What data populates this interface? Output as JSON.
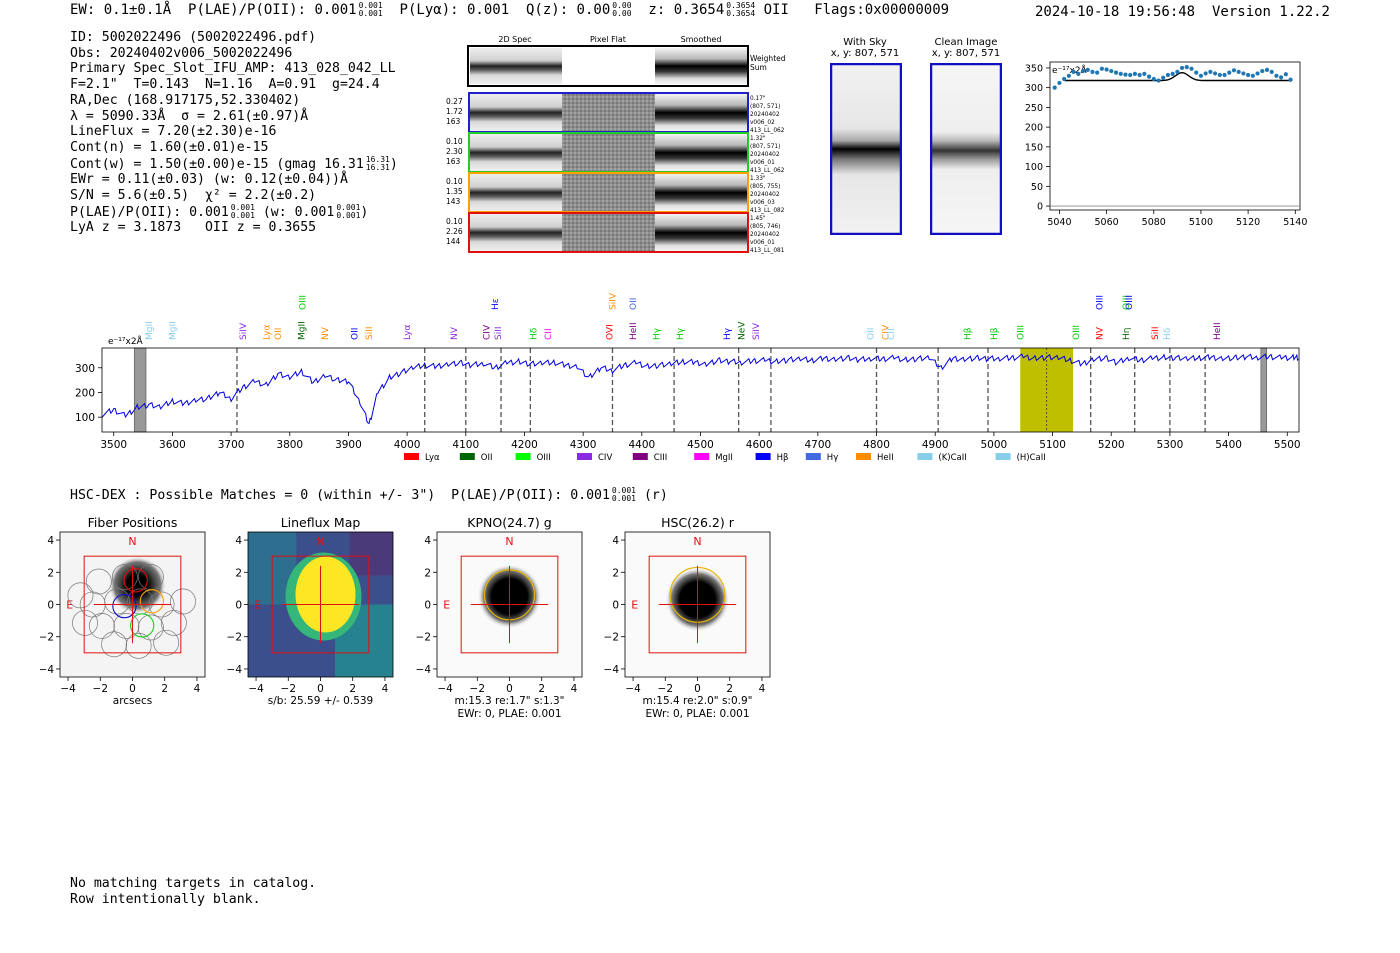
{
  "header": {
    "ew": "EW: 0.1±0.1Å",
    "plae_label": "P(LAE)/P(OII): 0.001",
    "plae_hi": "0.001",
    "plae_lo": "0.001",
    "plya": "P(Lyα): 0.001",
    "qz_label": "Q(z): 0.00",
    "qz_hi": "0.00",
    "qz_lo": "0.00",
    "z_label": "z: 0.3654",
    "z_hi": "0.3654",
    "z_lo": "0.3654",
    "z_line": "OII",
    "flags": "Flags:0x00000009",
    "datetime": "2024-10-18 19:56:48",
    "version": "Version 1.22.2"
  },
  "info": {
    "id": "ID: 5002022496 (5002022496.pdf)",
    "obs": "Obs: 20240402v006_5002022496",
    "primary": "Primary Spec_Slot_IFU_AMP: 413_028_042_LL",
    "fit": "F=2.1\"  T=0.143  N=1.16  A=0.91  g=24.4",
    "radec": "RA,Dec (168.917175,52.330402)",
    "lambda": "λ = 5090.33Å  σ = 2.61(±0.97)Å",
    "lineflux": "LineFlux = 7.20(±2.30)e-16",
    "contn": "Cont(n) = 1.60(±0.01)e-15",
    "contw": "Cont(w) = 1.50(±0.00)e-15 (gmag 16.31",
    "gmag_hi": "16.31",
    "gmag_lo": "16.31",
    "ewr": "EWr = 0.11(±0.03) (w: 0.12(±0.04))Å",
    "sn": "S/N = 5.6(±0.5)  χ² = 2.2(±0.2)",
    "plae": "P(LAE)/P(OII): 0.001",
    "plae_hi": "0.001",
    "plae_lo": "0.001",
    "plae_w": "(w: 0.001",
    "plae_w_hi": "0.001",
    "plae_w_lo": "0.001",
    "lya": "LyA z = 3.1873   OII z = 0.3655"
  },
  "cutouts": {
    "col_headers": [
      "2D Spec",
      "Pixel Flat",
      "Smoothed"
    ],
    "weighted_label": [
      "Weighted",
      "Sum"
    ],
    "rows": [
      {
        "left": [
          "0.27",
          "1.72",
          "163"
        ],
        "right": [
          "0.17\"",
          "(807, 571)",
          "20240402",
          "v006_02",
          "413_LL_062"
        ],
        "color": "#1f1fd0"
      },
      {
        "left": [
          "0.10",
          "2.30",
          "163"
        ],
        "right": [
          "1.32\"",
          "(807, 571)",
          "20240402",
          "v006_01",
          "413_LL_062"
        ],
        "color": "#22cc22"
      },
      {
        "left": [
          "0.10",
          "1.35",
          "143"
        ],
        "right": [
          "1.33\"",
          "(805, 755)",
          "20240402",
          "v006_03",
          "413_LL_082"
        ],
        "color": "#ff9f00"
      },
      {
        "left": [
          "0.10",
          "2.26",
          "144"
        ],
        "right": [
          "1.45\"",
          "(805, 746)",
          "20240402",
          "v006_01",
          "413_LL_081"
        ],
        "color": "#e01010"
      }
    ]
  },
  "sky_panels": {
    "with_sky": "With Sky",
    "clean": "Clean Image",
    "coord": "x, y: 807, 571"
  },
  "zoom_chart": {
    "type": "scatter",
    "unit_label": "e⁻¹⁷x2Å",
    "xlim": [
      5036,
      5142
    ],
    "ylim": [
      -10,
      365
    ],
    "xticks": [
      5040,
      5060,
      5080,
      5100,
      5120,
      5140
    ],
    "yticks": [
      0,
      50,
      100,
      150,
      200,
      250,
      300,
      350
    ],
    "x": [
      5038,
      5040,
      5042,
      5044,
      5046,
      5048,
      5050,
      5052,
      5054,
      5056,
      5058,
      5060,
      5062,
      5064,
      5066,
      5068,
      5070,
      5072,
      5074,
      5076,
      5078,
      5080,
      5082,
      5084,
      5086,
      5088,
      5090,
      5092,
      5094,
      5096,
      5098,
      5100,
      5102,
      5104,
      5106,
      5108,
      5110,
      5112,
      5114,
      5116,
      5118,
      5120,
      5122,
      5124,
      5126,
      5128,
      5130,
      5132,
      5134,
      5136,
      5138
    ],
    "y": [
      300,
      312,
      322,
      330,
      340,
      335,
      342,
      345,
      340,
      338,
      348,
      346,
      342,
      338,
      335,
      333,
      332,
      335,
      332,
      335,
      328,
      322,
      318,
      325,
      332,
      335,
      340,
      350,
      352,
      348,
      338,
      330,
      336,
      340,
      336,
      332,
      332,
      338,
      344,
      340,
      336,
      332,
      330,
      336,
      342,
      345,
      340,
      330,
      326,
      334,
      320
    ],
    "fit_line": {
      "baseline": 318,
      "amplitude": 20,
      "center": 5092,
      "sigma": 2.8
    }
  },
  "spectrum": {
    "type": "line",
    "unit_label": "e⁻¹⁷x2Å",
    "xlim": [
      3480,
      5520
    ],
    "ylim": [
      40,
      380
    ],
    "xticks": [
      3500,
      3600,
      3700,
      3800,
      3900,
      4000,
      4100,
      4200,
      4300,
      4400,
      4500,
      4600,
      4700,
      4800,
      4900,
      5000,
      5100,
      5200,
      5300,
      5400,
      5500
    ],
    "yticks": [
      100,
      200,
      300
    ],
    "dashed_lines": [
      3710,
      4030,
      4100,
      4160,
      4210,
      4350,
      4455,
      4565,
      4620,
      4800,
      4905,
      4990,
      5165,
      5240,
      5300,
      5360
    ],
    "highlight_range": [
      5045,
      5135
    ],
    "center_line": 5090,
    "masked_ranges": [
      [
        3535,
        3555
      ],
      [
        5455,
        5465
      ]
    ],
    "legend": [
      {
        "label": "Lyα",
        "color": "#ff0000"
      },
      {
        "label": "OII",
        "color": "#006400"
      },
      {
        "label": "OIII",
        "color": "#00ff00"
      },
      {
        "label": "CIV",
        "color": "#8a2be2"
      },
      {
        "label": "CIII",
        "color": "#800080"
      },
      {
        "label": "MgII",
        "color": "#ff00ff"
      },
      {
        "label": "Hβ",
        "color": "#0000ff"
      },
      {
        "label": "Hγ",
        "color": "#4169e1"
      },
      {
        "label": "HeII",
        "color": "#ff8c00"
      },
      {
        "label": "(K)CaII",
        "color": "#87ceeb"
      },
      {
        "label": "(H)CaII",
        "color": "#87ceeb"
      }
    ],
    "line_labels": [
      {
        "text": "MgII",
        "x": 3560,
        "color": "#87ceeb",
        "row": 1
      },
      {
        "text": "MgII",
        "x": 3600,
        "color": "#87ceeb",
        "row": 1
      },
      {
        "text": "SiIV",
        "x": 3720,
        "color": "#8a2be2",
        "row": 1
      },
      {
        "text": "Lyα",
        "x": 3760,
        "color": "#ff8c00",
        "row": 1
      },
      {
        "text": "OII",
        "x": 3780,
        "color": "#ff8c00",
        "row": 1
      },
      {
        "text": "MgII",
        "x": 3820,
        "color": "#006400",
        "row": 1
      },
      {
        "text": "OIII",
        "x": 3822,
        "color": "#00cc00",
        "row": 0
      },
      {
        "text": "NV",
        "x": 3860,
        "color": "#ff8c00",
        "row": 1
      },
      {
        "text": "OII",
        "x": 3910,
        "color": "#0000ff",
        "row": 1
      },
      {
        "text": "SiII",
        "x": 3935,
        "color": "#ff8c00",
        "row": 1
      },
      {
        "text": "Lyα",
        "x": 4000,
        "color": "#8a2be2",
        "row": 1
      },
      {
        "text": "NV",
        "x": 4080,
        "color": "#8a2be2",
        "row": 1
      },
      {
        "text": "CIV",
        "x": 4135,
        "color": "#800080",
        "row": 1
      },
      {
        "text": "SiII",
        "x": 4155,
        "color": "#8a2be2",
        "row": 1
      },
      {
        "text": "Hε",
        "x": 4150,
        "color": "#0000ff",
        "row": 0
      },
      {
        "text": "Hδ",
        "x": 4215,
        "color": "#00cc00",
        "row": 1
      },
      {
        "text": "CII",
        "x": 4240,
        "color": "#ff00ff",
        "row": 1
      },
      {
        "text": "SiIV",
        "x": 4350,
        "color": "#ff8c00",
        "row": 0
      },
      {
        "text": "OVI",
        "x": 4345,
        "color": "#ff0000",
        "row": 1
      },
      {
        "text": "OII",
        "x": 4385,
        "color": "#4169e1",
        "row": 0
      },
      {
        "text": "HeII",
        "x": 4385,
        "color": "#800080",
        "row": 1
      },
      {
        "text": "Hγ",
        "x": 4425,
        "color": "#00cc00",
        "row": 1
      },
      {
        "text": "Hγ",
        "x": 4465,
        "color": "#00cc00",
        "row": 1
      },
      {
        "text": "Hγ",
        "x": 4545,
        "color": "#0000ff",
        "row": 1
      },
      {
        "text": "NeV",
        "x": 4570,
        "color": "#006400",
        "row": 1
      },
      {
        "text": "SiIV",
        "x": 4595,
        "color": "#8a2be2",
        "row": 1
      },
      {
        "text": "OII",
        "x": 4790,
        "color": "#87ceeb",
        "row": 1
      },
      {
        "text": "CIV",
        "x": 4815,
        "color": "#ff8c00",
        "row": 1
      },
      {
        "text": "CII",
        "x": 4825,
        "color": "#87ceeb",
        "row": 1
      },
      {
        "text": "Hβ",
        "x": 4955,
        "color": "#00cc00",
        "row": 1
      },
      {
        "text": "Hβ",
        "x": 5000,
        "color": "#00cc00",
        "row": 1
      },
      {
        "text": "OIII",
        "x": 5045,
        "color": "#00cc00",
        "row": 1
      },
      {
        "text": "OIII",
        "x": 5140,
        "color": "#00cc00",
        "row": 1
      },
      {
        "text": "OIII",
        "x": 5180,
        "color": "#0000ff",
        "row": 0
      },
      {
        "text": "OIII",
        "x": 5225,
        "color": "#00cc00",
        "row": 0
      },
      {
        "text": "OIII",
        "x": 5230,
        "color": "#0000ff",
        "row": 0
      },
      {
        "text": "NV",
        "x": 5180,
        "color": "#ff0000",
        "row": 1
      },
      {
        "text": "Hη",
        "x": 5225,
        "color": "#006400",
        "row": 1
      },
      {
        "text": "SiII",
        "x": 5275,
        "color": "#ff0000",
        "row": 1
      },
      {
        "text": "Hδ",
        "x": 5295,
        "color": "#87ceeb",
        "row": 1
      },
      {
        "text": "HeII",
        "x": 5380,
        "color": "#800080",
        "row": 1
      }
    ],
    "x": [
      3480,
      3500,
      3520,
      3540,
      3560,
      3580,
      3600,
      3620,
      3640,
      3660,
      3680,
      3700,
      3720,
      3740,
      3760,
      3780,
      3800,
      3820,
      3840,
      3860,
      3880,
      3900,
      3920,
      3935,
      3950,
      3970,
      3990,
      4010,
      4030,
      4050,
      4070,
      4090,
      4110,
      4130,
      4150,
      4170,
      4190,
      4210,
      4230,
      4250,
      4270,
      4290,
      4310,
      4330,
      4350,
      4370,
      4390,
      4410,
      4430,
      4450,
      4470,
      4490,
      4510,
      4530,
      4550,
      4570,
      4590,
      4610,
      4630,
      4650,
      4670,
      4690,
      4710,
      4730,
      4750,
      4770,
      4790,
      4810,
      4830,
      4850,
      4870,
      4890,
      4910,
      4930,
      4950,
      4970,
      4990,
      5010,
      5030,
      5050,
      5070,
      5090,
      5110,
      5130,
      5150,
      5170,
      5190,
      5210,
      5230,
      5250,
      5270,
      5290,
      5310,
      5330,
      5350,
      5370,
      5390,
      5410,
      5430,
      5450,
      5470,
      5490,
      5510,
      5520
    ],
    "y": [
      110,
      130,
      105,
      140,
      150,
      140,
      165,
      155,
      170,
      175,
      200,
      175,
      220,
      245,
      230,
      275,
      260,
      285,
      240,
      270,
      250,
      245,
      160,
      70,
      200,
      260,
      280,
      300,
      310,
      305,
      315,
      320,
      310,
      318,
      300,
      320,
      325,
      315,
      318,
      322,
      310,
      305,
      260,
      300,
      290,
      310,
      320,
      305,
      310,
      315,
      325,
      322,
      315,
      330,
      325,
      322,
      328,
      330,
      325,
      332,
      335,
      330,
      338,
      335,
      340,
      332,
      338,
      335,
      340,
      332,
      336,
      340,
      300,
      338,
      335,
      340,
      336,
      338,
      340,
      345,
      338,
      342,
      340,
      330,
      315,
      335,
      340,
      320,
      340,
      330,
      338,
      342,
      340,
      336,
      340,
      342,
      338,
      340,
      344,
      342,
      345,
      340,
      342,
      342
    ]
  },
  "hsc_line": {
    "text": "HSC-DEX : Possible Matches = 0 (within +/- 3\")  P(LAE)/P(OII): 0.001",
    "hi": "0.001",
    "lo": "0.001",
    "suffix": "(r)"
  },
  "cutout_panels": [
    {
      "title": "Fiber Positions",
      "xlabel": "arcsecs",
      "sub1": "",
      "sub2": ""
    },
    {
      "title": "Lineflux Map",
      "xlabel": "s/b: 25.59 +/- 0.539",
      "sub1": "",
      "sub2": ""
    },
    {
      "title": "KPNO(24.7) g",
      "xlabel": "m:15.3  re:1.7\"  s:1.3\"",
      "sub1": "EWr: 0, PLAE: 0.001",
      "sub2": ""
    },
    {
      "title": "HSC(26.2) r",
      "xlabel": "m:15.4  re:2.0\"  s:0.9\"",
      "sub1": "EWr: 0, PLAE: 0.001",
      "sub2": ""
    }
  ],
  "panel_axis": {
    "ticks": [
      "−4",
      "−2",
      "0",
      "2",
      "4"
    ],
    "north": "N",
    "east": "E"
  },
  "footer": {
    "line1": "No matching targets in catalog.",
    "line2": "Row intentionally blank."
  }
}
